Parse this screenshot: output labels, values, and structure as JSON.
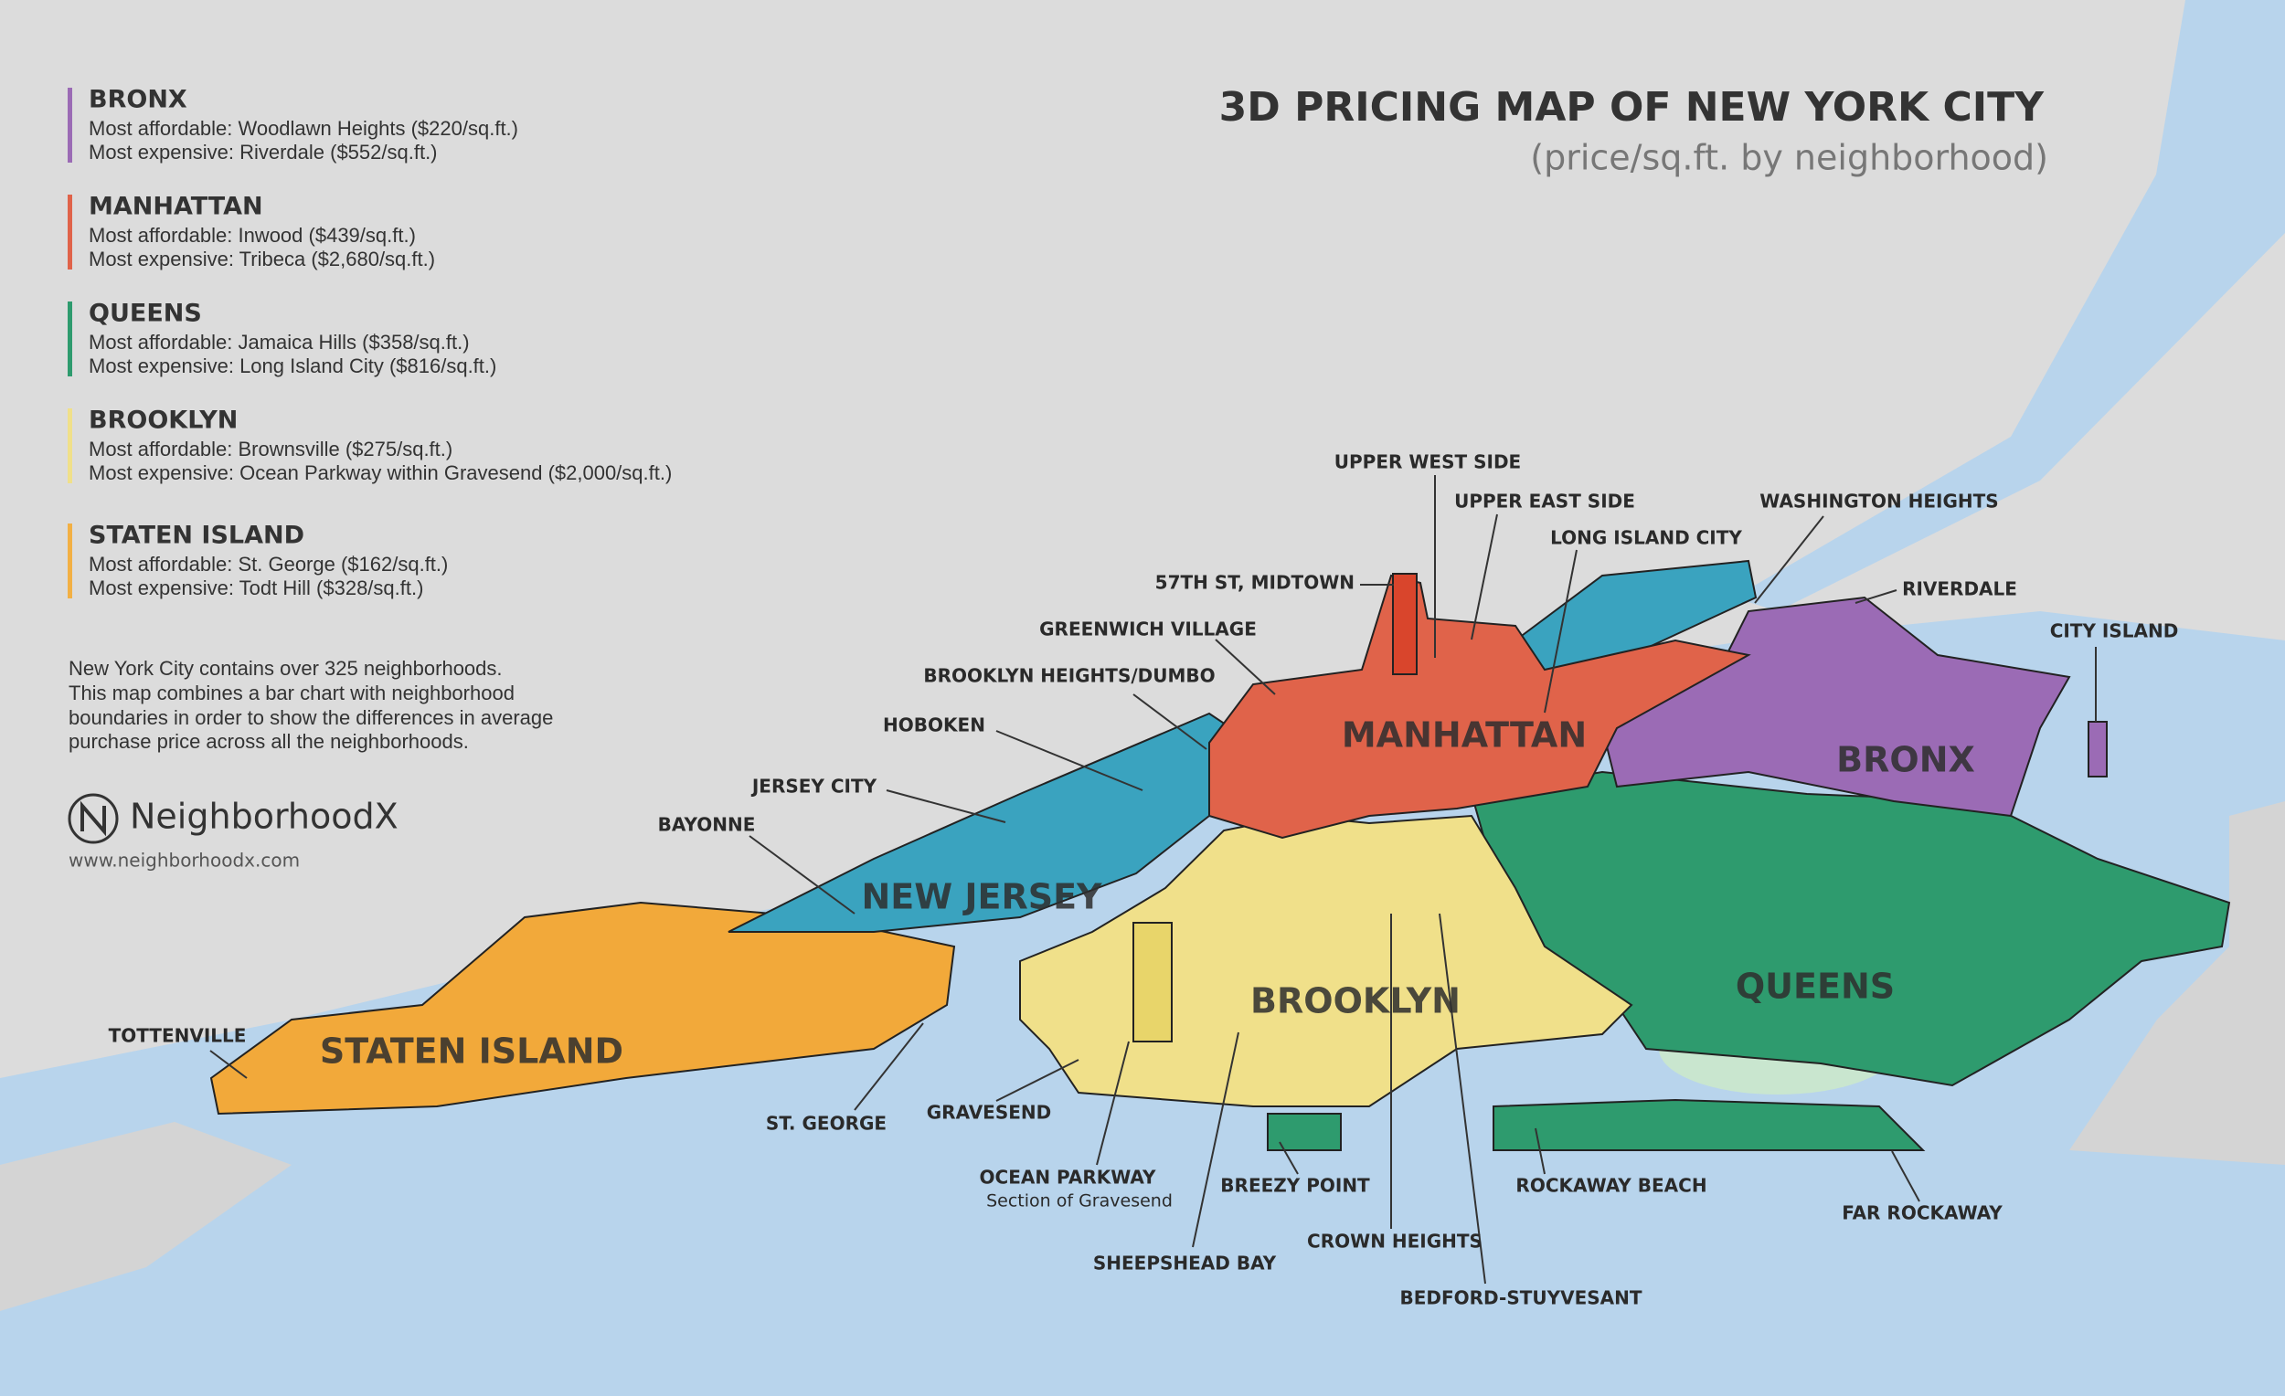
{
  "header": {
    "title": "3D PRICING MAP OF NEW YORK CITY",
    "subtitle": "(price/sq.ft. by neighborhood)"
  },
  "legend": [
    {
      "borough": "BRONX",
      "color": "#9b6bb5",
      "lines": [
        "Most affordable: Woodlawn Heights ($220/sq.ft.)",
        "Most expensive: Riverdale ($552/sq.ft.)"
      ]
    },
    {
      "borough": "MANHATTAN",
      "color": "#e0634a",
      "lines": [
        "Most affordable: Inwood ($439/sq.ft.)",
        "Most expensive: Tribeca ($2,680/sq.ft.)"
      ]
    },
    {
      "borough": "QUEENS",
      "color": "#2e9b6e",
      "lines": [
        "Most affordable: Jamaica Hills ($358/sq.ft.)",
        "Most expensive: Long Island City ($816/sq.ft.)"
      ]
    },
    {
      "borough": "BROOKLYN",
      "color": "#f0e08a",
      "lines": [
        "Most affordable: Brownsville ($275/sq.ft.)",
        "Most expensive: Ocean Parkway within Gravesend ($2,000/sq.ft.)"
      ]
    },
    {
      "borough": "STATEN ISLAND",
      "color": "#f2b044",
      "lines": [
        "Most affordable: St. George ($162/sq.ft.)",
        "Most expensive: Todt Hill ($328/sq.ft.)"
      ]
    }
  ],
  "description": [
    "New York City contains over 325 neighborhoods.",
    "This map combines a bar chart with neighborhood",
    "boundaries in order to show the differences in average",
    "purchase price across all the neighborhoods."
  ],
  "brand": {
    "name": "NeighborhoodX",
    "url": "www.neighborhoodx.com"
  },
  "map": {
    "regions": [
      "MANHATTAN",
      "BRONX",
      "NEW JERSEY",
      "BROOKLYN",
      "QUEENS",
      "STATEN ISLAND"
    ],
    "neighborhoods": [
      "UPPER WEST SIDE",
      "UPPER EAST SIDE",
      "WASHINGTON HEIGHTS",
      "LONG ISLAND CITY",
      "57TH ST, MIDTOWN",
      "RIVERDALE",
      "CITY ISLAND",
      "GREENWICH VILLAGE",
      "BROOKLYN HEIGHTS/DUMBO",
      "HOBOKEN",
      "JERSEY CITY",
      "BAYONNE",
      "TOTTENVILLE",
      "ST. GEORGE",
      "GRAVESEND",
      "OCEAN PARKWAY",
      "BREEZY POINT",
      "SHEEPSHEAD BAY",
      "CROWN HEIGHTS",
      "BEDFORD-STUYVESANT",
      "ROCKAWAY BEACH",
      "FAR ROCKAWAY"
    ],
    "notes": [
      "Section of Gravesend"
    ]
  }
}
